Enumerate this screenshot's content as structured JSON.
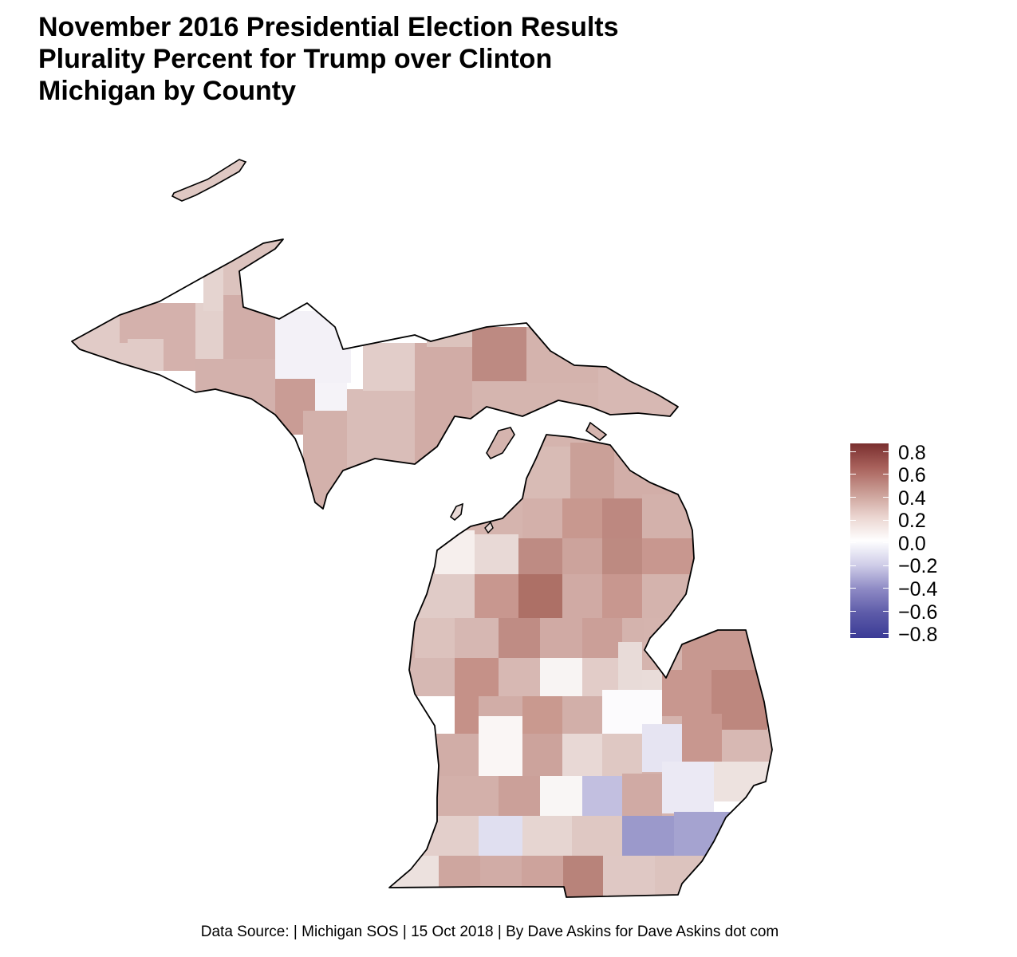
{
  "title_lines": [
    "November 2016 Presidential Election Results",
    "Plurality Percent for Trump over Clinton",
    "Michigan by County"
  ],
  "legend": {
    "labels": [
      "0.8",
      "0.6",
      "0.4",
      "0.2",
      "0.0",
      "−0.2",
      "−0.4",
      "−0.6",
      "−0.8"
    ],
    "range": [
      -0.8,
      0.8
    ],
    "colors": {
      "high": "#7a2f2f",
      "mid": "#ffffff",
      "low": "#3b3b96"
    }
  },
  "footer": "Data Source:  | Michigan SOS | 15 Oct 2018 | By Dave Askins for Dave Askins dot com"
}
